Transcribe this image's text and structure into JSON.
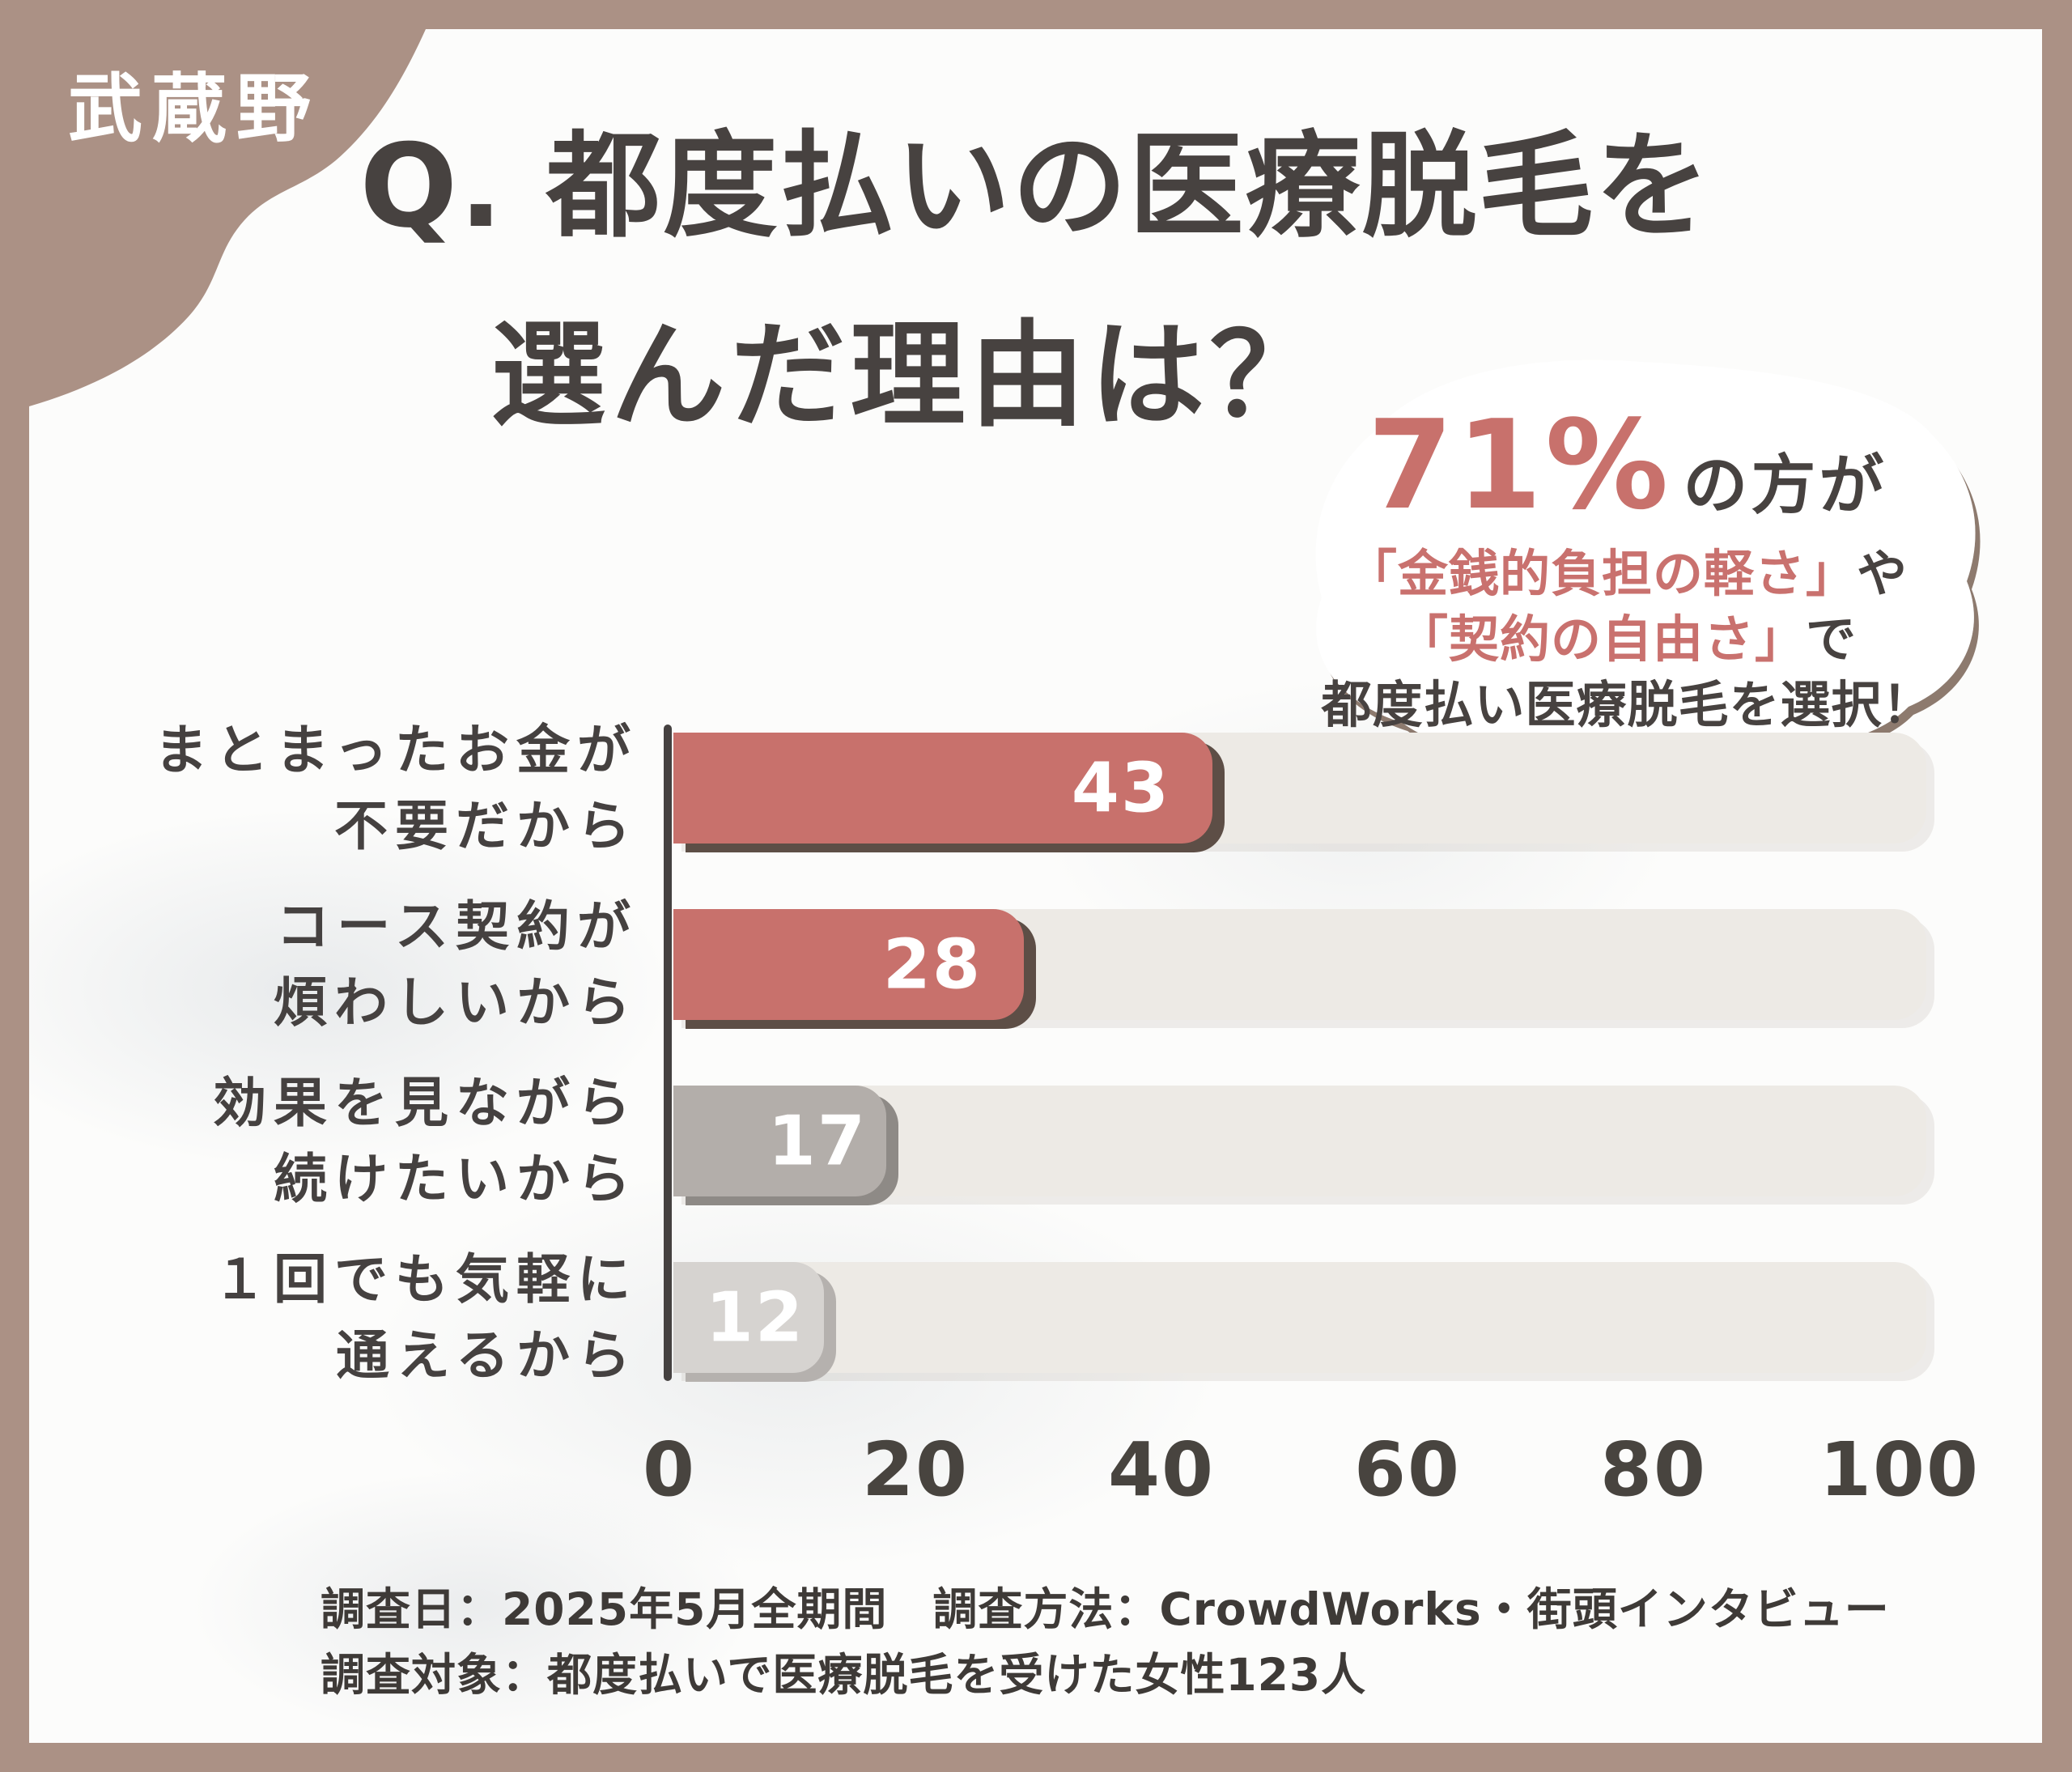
{
  "brand": {
    "name": "武蔵野"
  },
  "title": {
    "line1": "Q. 都度払いの医療脱毛を",
    "line2": "選んだ理由は？"
  },
  "callout": {
    "stat": "71%",
    "stat_suffix": "の方が",
    "quote1": "「金銭的負担の軽さ」",
    "quote1_suffix": "や",
    "quote2": "「契約の自由さ」",
    "quote2_suffix": "で",
    "conclusion": "都度払い医療脱毛を選択！"
  },
  "chart_data": {
    "type": "bar",
    "orientation": "horizontal",
    "title": "都度払いの医療脱毛を選んだ理由",
    "categories": [
      "まとまったお金が不要だから",
      "コース契約が煩わしいから",
      "効果を見ながら続けたいから",
      "１回でも気軽に通えるから"
    ],
    "category_lines": [
      [
        "まとまったお金が",
        "不要だから"
      ],
      [
        "コース契約が",
        "煩わしいから"
      ],
      [
        "効果を見ながら",
        "続けたいから"
      ],
      [
        "１回でも気軽に",
        "通えるから"
      ]
    ],
    "values": [
      43,
      28,
      17,
      12
    ],
    "xlim": [
      0,
      100
    ],
    "x_ticks": [
      0,
      20,
      40,
      60,
      80,
      100
    ],
    "bar_colors": [
      "#c8716c",
      "#c8716c",
      "#b3aeaa",
      "#d6d3d0"
    ],
    "bar_shadow_colors": [
      "#5d4e46",
      "#5d4e46",
      "#8e8a86",
      "#b5b1ae"
    ],
    "grid": false,
    "legend": false
  },
  "footer": {
    "line1": "調査日：2025年5月全期間　調査方法：CrowdWorks・街頭インタビュー",
    "line2": "調査対象：都度払いで医療脱毛を受けた女性123人"
  },
  "colors": {
    "frame": "#ab9185",
    "background": "#fcfcfb",
    "text_dark": "#474240",
    "accent_red": "#c8716c",
    "track": "#edeae5",
    "bubble_shadow": "#8d7a6e",
    "axis": "#454140"
  }
}
